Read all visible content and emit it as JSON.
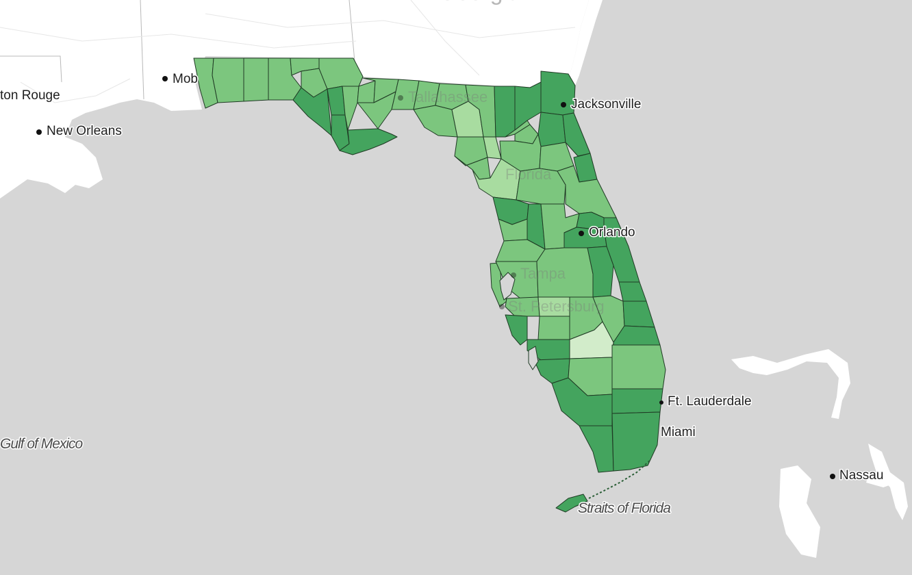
{
  "map": {
    "state_label": "Georgia",
    "water_labels": {
      "gulf": "Gulf of Mexico",
      "straits": "Straits of Florida"
    },
    "cities": {
      "baton_rouge": "ton Rouge",
      "new_orleans": "New Orleans",
      "mobile": "Mob",
      "jacksonville": "Jacksonville",
      "orlando": "Orlando",
      "tampa": "Tampa",
      "st_petersburg": "St. Petersburg",
      "tallahassee": "Tallahassee",
      "ft_lauderdale": "Ft. Lauderdale",
      "miami": "Miami",
      "nassau": "Nassau"
    },
    "ghost_labels": {
      "florida": "Florida"
    },
    "colors": {
      "ocean": "#d6d6d6",
      "land": "#ffffff",
      "level_1": "#d2ecca",
      "level_2": "#a8dca0",
      "level_3": "#7cc67e",
      "level_4": "#44a45e"
    }
  }
}
